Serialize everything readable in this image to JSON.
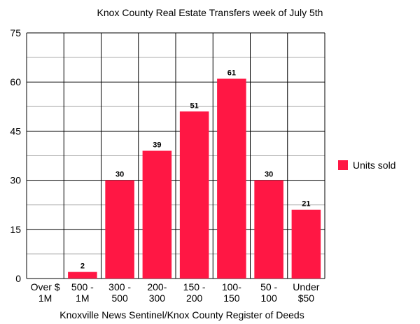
{
  "chart_data": {
    "type": "bar",
    "title": "Knox County Real Estate Transfers week of July 5th",
    "source": "Knoxville News Sentinel/Knox County Register of Deeds",
    "categories": [
      [
        "Over $",
        "1M"
      ],
      [
        "500 -",
        "1M"
      ],
      [
        "300 -",
        "500"
      ],
      [
        "200-",
        "300"
      ],
      [
        "150 -",
        "200"
      ],
      [
        "100-",
        "150"
      ],
      [
        "50 -",
        "100"
      ],
      [
        "Under",
        "$50"
      ]
    ],
    "series": [
      {
        "name": "Units sold",
        "values": [
          0,
          2,
          30,
          39,
          51,
          61,
          30,
          21
        ],
        "color": "#ff1744"
      }
    ],
    "data_labels": [
      "",
      "2",
      "30",
      "39",
      "51",
      "61",
      "30",
      "21"
    ],
    "ylim": [
      0,
      75
    ],
    "yticks": [
      0,
      15,
      30,
      45,
      60,
      75
    ],
    "grid": true,
    "legend_position": "right"
  }
}
